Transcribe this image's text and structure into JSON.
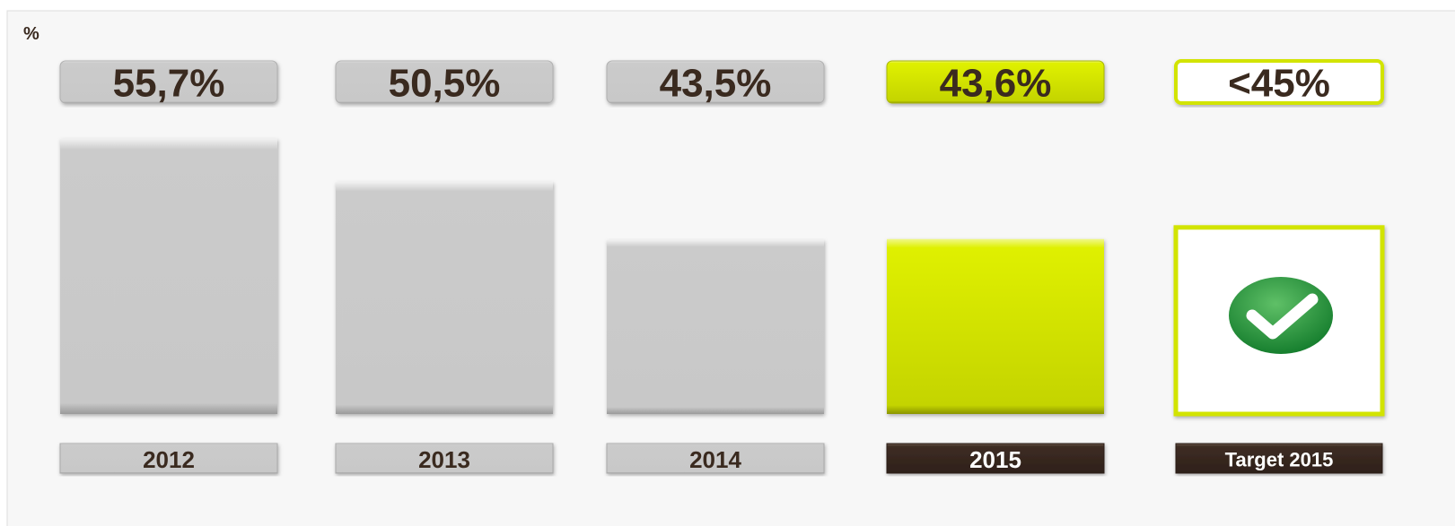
{
  "chart_data": {
    "type": "bar",
    "y_label": "%",
    "categories": [
      "2012",
      "2013",
      "2014",
      "2015",
      "Target 2015"
    ],
    "values": [
      55.7,
      50.5,
      43.5,
      43.6,
      45
    ],
    "value_labels": [
      "55,7%",
      "50,5%",
      "43,5%",
      "43,6%",
      "<45%"
    ],
    "colors": [
      "#c9c9c9",
      "#c9c9c9",
      "#c9c9c9",
      "#d2e400",
      "#ffffff"
    ],
    "ylim": [
      22.5,
      60
    ]
  }
}
